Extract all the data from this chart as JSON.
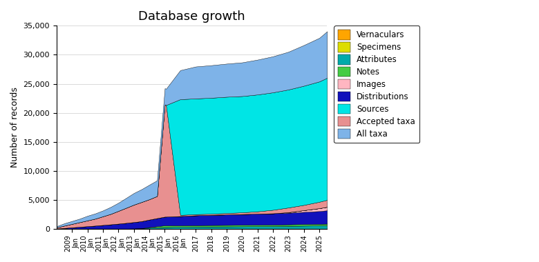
{
  "title": "Database growth",
  "ylabel": "Number of records",
  "ylim": [
    0,
    35000
  ],
  "yticks": [
    0,
    5000,
    10000,
    15000,
    20000,
    25000,
    30000,
    35000
  ],
  "years": [
    2008.0,
    2008.25,
    2008.5,
    2009.0,
    2009.5,
    2010.0,
    2010.5,
    2011.0,
    2011.5,
    2012.0,
    2012.5,
    2013.0,
    2013.5,
    2014.0,
    2014.5,
    2015.0,
    2015.08,
    2016.0,
    2017.0,
    2018.0,
    2019.0,
    2020.0,
    2021.0,
    2022.0,
    2023.0,
    2024.0,
    2025.0,
    2025.5
  ],
  "stack_order": [
    "Attributes",
    "Notes",
    "Distributions",
    "Images",
    "Specimens",
    "Vernaculars",
    "Accepted taxa",
    "Sources",
    "All taxa"
  ],
  "colors": {
    "All taxa": "#7EB3E8",
    "Accepted taxa": "#E89090",
    "Sources": "#00E5E5",
    "Distributions": "#1111BB",
    "Images": "#FFB6C1",
    "Notes": "#44CC44",
    "Attributes": "#00AAAA",
    "Specimens": "#DDDD00",
    "Vernaculars": "#FFA500"
  },
  "series": {
    "Attributes": [
      10,
      10,
      10,
      10,
      10,
      10,
      10,
      20,
      30,
      50,
      80,
      120,
      180,
      250,
      300,
      350,
      350,
      400,
      430,
      450,
      470,
      490,
      510,
      530,
      560,
      600,
      630,
      650
    ],
    "Notes": [
      0,
      0,
      0,
      0,
      0,
      0,
      0,
      0,
      0,
      0,
      0,
      0,
      0,
      100,
      200,
      300,
      300,
      250,
      250,
      250,
      250,
      250,
      250,
      250,
      260,
      270,
      280,
      290
    ],
    "Distributions": [
      100,
      150,
      200,
      300,
      400,
      500,
      600,
      700,
      800,
      900,
      1000,
      1100,
      1200,
      1300,
      1400,
      1500,
      1500,
      1600,
      1700,
      1750,
      1800,
      1850,
      1900,
      1950,
      2000,
      2100,
      2200,
      2300
    ],
    "Images": [
      0,
      0,
      0,
      0,
      0,
      0,
      0,
      0,
      0,
      0,
      0,
      0,
      0,
      0,
      0,
      0,
      0,
      0,
      0,
      0,
      0,
      0,
      0,
      0,
      100,
      300,
      500,
      600
    ],
    "Specimens": [
      0,
      0,
      0,
      0,
      0,
      0,
      0,
      0,
      0,
      0,
      0,
      0,
      0,
      0,
      0,
      0,
      0,
      0,
      0,
      0,
      0,
      0,
      0,
      0,
      0,
      0,
      0,
      0
    ],
    "Vernaculars": [
      0,
      0,
      0,
      0,
      0,
      0,
      0,
      0,
      0,
      0,
      0,
      0,
      0,
      0,
      0,
      0,
      0,
      0,
      0,
      0,
      0,
      0,
      0,
      0,
      0,
      0,
      0,
      0
    ],
    "Accepted taxa": [
      200,
      300,
      400,
      600,
      800,
      1000,
      1200,
      1500,
      1800,
      2200,
      2600,
      3000,
      3300,
      3500,
      3800,
      19300,
      19200,
      200,
      200,
      200,
      250,
      300,
      400,
      600,
      800,
      900,
      1100,
      1200
    ],
    "Sources": [
      0,
      0,
      0,
      0,
      0,
      0,
      0,
      0,
      0,
      0,
      0,
      0,
      0,
      0,
      0,
      0,
      0,
      19900,
      19900,
      19950,
      20000,
      20000,
      20100,
      20200,
      20300,
      20500,
      20700,
      21000
    ],
    "All taxa": [
      200,
      300,
      400,
      500,
      600,
      800,
      900,
      1000,
      1200,
      1400,
      1700,
      2000,
      2200,
      2500,
      2700,
      2800,
      2800,
      5000,
      5500,
      5600,
      5700,
      5800,
      6000,
      6200,
      6500,
      7000,
      7500,
      8000
    ]
  },
  "xtick_positions": [
    2009,
    2010,
    2011,
    2012,
    2013,
    2014,
    2015,
    2016,
    2017,
    2018,
    2019,
    2020,
    2021,
    2022,
    2023,
    2024,
    2025
  ],
  "legend_order": [
    "Vernaculars",
    "Specimens",
    "Attributes",
    "Notes",
    "Images",
    "Distributions",
    "Sources",
    "Accepted taxa",
    "All taxa"
  ]
}
